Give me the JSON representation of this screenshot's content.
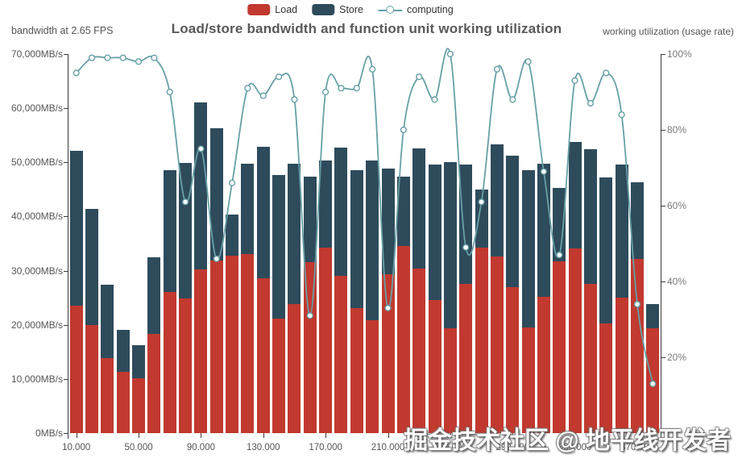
{
  "header": {
    "title": "Load/store bandwidth and function unit working utilization",
    "left_axis_title": "bandwidth at 2.65 FPS",
    "right_axis_title": "working utilization (usage rate)"
  },
  "legend": {
    "items": [
      {
        "label": "Load",
        "type": "bar",
        "color": "#c1392f"
      },
      {
        "label": "Store",
        "type": "bar",
        "color": "#2e4b5c"
      },
      {
        "label": "computing",
        "type": "line",
        "color": "#67a0a6"
      }
    ]
  },
  "watermark": "掘金技术社区 @ 地平线开发者",
  "colors": {
    "load": "#c1392f",
    "store": "#2e4b5c",
    "computing_line": "#67a0a6",
    "axis": "#3a3a3a",
    "title_text": "#595959",
    "label_text": "#555555",
    "background": "#ffffff"
  },
  "chart_data": {
    "type": "bar",
    "subtype": "stacked-bars-with-utilization-line",
    "title": "Load/store bandwidth and function unit working utilization",
    "grid": false,
    "legend_position": "top",
    "x": [
      10000,
      20000,
      30000,
      40000,
      50000,
      60000,
      70000,
      80000,
      90000,
      100000,
      110000,
      120000,
      130000,
      140000,
      150000,
      160000,
      170000,
      180000,
      190000,
      200000,
      210000,
      220000,
      230000,
      240000,
      250000,
      260000,
      270000,
      280000,
      290000,
      300000,
      310000,
      320000,
      330000,
      340000,
      350000,
      360000,
      370000,
      380000
    ],
    "x_tick_labels": [
      "10.000",
      "50.000",
      "90.000",
      "130.000",
      "170.000",
      "210.000",
      "250.000",
      "290.000",
      "330.000",
      "370.000"
    ],
    "x_tick_every": 4,
    "left_axis": {
      "title": "bandwidth at 2.65 FPS",
      "unit": "MB/s",
      "min": 0,
      "max": 70000,
      "tick_values": [
        0,
        10000,
        20000,
        30000,
        40000,
        50000,
        60000,
        70000
      ],
      "tick_labels": [
        "0MB/s",
        "10,000MB/s",
        "20,000MB/s",
        "30,000MB/s",
        "40,000MB/s",
        "50,000MB/s",
        "60,000MB/s",
        "70,000MB/s"
      ]
    },
    "right_axis": {
      "title": "working utilization (usage rate)",
      "unit": "%",
      "min": 0,
      "max": 100,
      "tick_values": [
        20,
        40,
        60,
        80,
        100
      ],
      "tick_labels": [
        "20%",
        "40%",
        "60%",
        "80%",
        "100%"
      ]
    },
    "series": [
      {
        "name": "Load",
        "type": "bar",
        "stack": "bandwidth",
        "axis": "left",
        "color": "#c1392f",
        "values": [
          23500,
          20000,
          13900,
          11300,
          10200,
          18300,
          26100,
          24900,
          30200,
          31900,
          32800,
          33100,
          28600,
          21200,
          23900,
          31600,
          34300,
          29100,
          23100,
          20900,
          29400,
          34600,
          30400,
          24600,
          19400,
          27600,
          34200,
          32600,
          27000,
          19500,
          25200,
          31800,
          34100,
          27600,
          20300,
          25000,
          32200,
          19400
        ]
      },
      {
        "name": "Store",
        "type": "bar",
        "stack": "bandwidth",
        "axis": "left",
        "color": "#2e4b5c",
        "values": [
          28600,
          21400,
          13500,
          7700,
          6000,
          14100,
          22400,
          25000,
          30900,
          24400,
          7500,
          16700,
          24300,
          26500,
          25900,
          15700,
          16000,
          23700,
          25400,
          29400,
          19400,
          12700,
          22200,
          25000,
          30700,
          22000,
          10800,
          20700,
          24300,
          29000,
          24500,
          13500,
          19600,
          24800,
          26900,
          24600,
          14100,
          4500
        ]
      },
      {
        "name": "computing",
        "type": "line",
        "axis": "right",
        "color": "#67a0a6",
        "marker": "hollow-circle",
        "values": [
          95,
          99,
          99,
          99,
          98,
          99,
          90,
          61,
          75,
          46,
          66,
          91,
          89,
          94,
          88,
          31,
          90,
          91,
          91,
          96,
          33,
          80,
          94,
          88,
          100,
          49,
          61,
          96,
          88,
          98,
          69,
          47,
          93,
          87,
          95,
          84,
          34,
          13
        ]
      }
    ]
  }
}
